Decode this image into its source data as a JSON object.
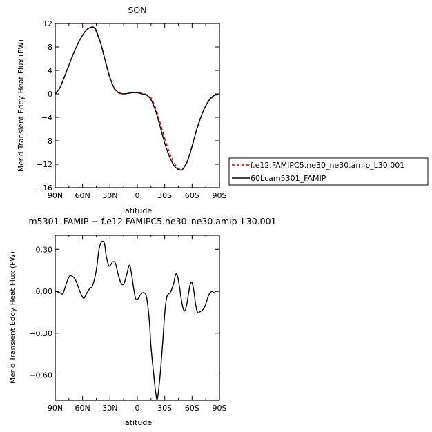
{
  "chart_data": [
    {
      "type": "line",
      "title": "SON",
      "xlabel": "latitude",
      "ylabel": "Merid Transient Eddy Heat Flux (PW)",
      "xlim": [
        90,
        -90
      ],
      "ylim": [
        -16,
        12
      ],
      "x_ticks": [
        90,
        60,
        30,
        0,
        -30,
        -60,
        -90
      ],
      "x_tick_labels": [
        "90N",
        "60N",
        "30N",
        "0",
        "30S",
        "60S",
        "90S"
      ],
      "y_ticks": [
        12,
        8,
        4,
        0,
        -4,
        -8,
        -12,
        -16
      ],
      "y_tick_labels": [
        "12",
        "8",
        "4",
        "0",
        "−4",
        "−8",
        "−12",
        "−16"
      ],
      "legend_placement": "right",
      "series": [
        {
          "name": "f.e12.FAMIPC5.ne30_ne30.amip_L30.001",
          "color": "#cc0000",
          "dash": "dashed",
          "x": [
            90,
            85,
            80,
            75,
            70,
            65,
            60,
            55,
            50,
            47,
            45,
            40,
            35,
            30,
            25,
            20,
            15,
            10,
            5,
            0,
            -5,
            -10,
            -15,
            -20,
            -25,
            -30,
            -35,
            -40,
            -45,
            -48,
            -50,
            -55,
            -60,
            -65,
            -70,
            -75,
            -80,
            -85,
            -90
          ],
          "y": [
            0,
            1.0,
            2.8,
            4.8,
            6.8,
            8.6,
            10.0,
            11.0,
            11.3,
            11.2,
            10.6,
            8.4,
            5.4,
            2.6,
            0.8,
            0.1,
            0.0,
            0.1,
            0.2,
            0.25,
            0.1,
            -0.1,
            -0.7,
            -2.4,
            -4.9,
            -7.6,
            -9.9,
            -11.7,
            -12.7,
            -12.9,
            -12.8,
            -11.5,
            -9.0,
            -6.2,
            -3.9,
            -2.1,
            -0.9,
            -0.3,
            0
          ]
        },
        {
          "name": "60Lcam5301_FAMIP",
          "color": "#000000",
          "dash": "solid",
          "x": [
            90,
            85,
            80,
            75,
            70,
            65,
            60,
            55,
            50,
            47,
            45,
            40,
            35,
            30,
            25,
            20,
            15,
            10,
            5,
            0,
            -5,
            -10,
            -15,
            -20,
            -25,
            -30,
            -35,
            -40,
            -45,
            -48,
            -50,
            -55,
            -60,
            -65,
            -70,
            -75,
            -80,
            -85,
            -90
          ],
          "y": [
            0,
            1.0,
            2.9,
            4.9,
            6.9,
            8.6,
            10.0,
            11.0,
            11.4,
            11.3,
            10.8,
            8.6,
            5.6,
            2.8,
            0.9,
            0.2,
            0.0,
            0.1,
            0.2,
            0.2,
            0.0,
            -0.2,
            -1.0,
            -2.9,
            -5.6,
            -8.4,
            -10.6,
            -12.2,
            -12.9,
            -13.0,
            -12.8,
            -11.4,
            -8.9,
            -6.1,
            -3.8,
            -2.0,
            -0.8,
            -0.2,
            0
          ]
        }
      ]
    },
    {
      "type": "line",
      "title": "m5301_FAMIP − f.e12.FAMIPC5.ne30_ne30.amip_L30.001",
      "xlabel": "latitude",
      "ylabel": "Merid Transient Eddy Heat Flux (PW)",
      "xlim": [
        90,
        -90
      ],
      "ylim": [
        -0.78,
        0.4
      ],
      "x_ticks": [
        90,
        60,
        30,
        0,
        -30,
        -60,
        -90
      ],
      "x_tick_labels": [
        "90N",
        "60N",
        "30N",
        "0",
        "30S",
        "60S",
        "90S"
      ],
      "y_ticks": [
        0.3,
        0.0,
        -0.3,
        -0.6
      ],
      "y_tick_labels": [
        "0.30",
        "0.00",
        "−0.30",
        "−0.60"
      ],
      "series": [
        {
          "color": "#000000",
          "x": [
            90,
            85,
            82,
            80,
            77,
            74,
            70,
            67,
            63,
            59,
            56,
            52,
            49,
            45,
            42,
            39,
            36,
            34,
            31,
            27,
            24,
            21,
            18,
            15,
            12,
            9,
            7,
            4,
            2,
            0,
            -2,
            -4,
            -7,
            -10,
            -13,
            -15,
            -18,
            -20,
            -22,
            -25,
            -28,
            -30,
            -32,
            -34,
            -36,
            -38,
            -40,
            -42,
            -44,
            -46,
            -48,
            -50,
            -52,
            -54,
            -56,
            -58,
            -60,
            -62,
            -64,
            -66,
            -68,
            -70,
            -72,
            -74,
            -76,
            -78,
            -80,
            -82,
            -84,
            -86,
            -88,
            -90
          ],
          "y": [
            0.0,
            -0.01,
            -0.02,
            0.01,
            0.07,
            0.11,
            0.1,
            0.07,
            0.0,
            -0.05,
            -0.02,
            0.02,
            0.04,
            0.15,
            0.3,
            0.355,
            0.34,
            0.25,
            0.18,
            0.21,
            0.2,
            0.12,
            0.06,
            0.05,
            0.11,
            0.185,
            0.15,
            0.02,
            -0.05,
            -0.06,
            -0.04,
            -0.02,
            -0.01,
            -0.04,
            -0.2,
            -0.4,
            -0.6,
            -0.72,
            -0.77,
            -0.6,
            -0.35,
            -0.16,
            -0.05,
            -0.02,
            -0.01,
            0.02,
            0.06,
            0.12,
            0.11,
            0.04,
            -0.05,
            -0.12,
            -0.14,
            -0.1,
            -0.02,
            0.05,
            0.06,
            0.0,
            -0.1,
            -0.15,
            -0.15,
            -0.14,
            -0.13,
            -0.11,
            -0.07,
            -0.03,
            -0.01,
            0.0,
            -0.01,
            0.0,
            0.0,
            0.0
          ]
        }
      ]
    }
  ]
}
